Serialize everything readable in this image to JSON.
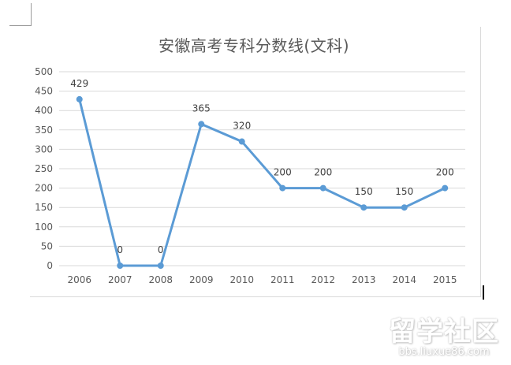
{
  "chart_data": {
    "type": "line",
    "title": "安徽高考专科分数线(文科)",
    "xlabel": "",
    "ylabel": "",
    "categories": [
      "2006",
      "2007",
      "2008",
      "2009",
      "2010",
      "2011",
      "2012",
      "2013",
      "2014",
      "2015"
    ],
    "series": [
      {
        "name": "文科",
        "values": [
          429,
          0,
          0,
          365,
          320,
          200,
          200,
          150,
          150,
          200
        ],
        "color": "#5B9BD5"
      }
    ],
    "ylim": [
      0,
      500
    ],
    "yticks": [
      0,
      50,
      100,
      150,
      200,
      250,
      300,
      350,
      400,
      450,
      500
    ],
    "grid": true,
    "legend": "none",
    "data_labels": [
      "429",
      "0",
      "0",
      "365",
      "320",
      "200",
      "200",
      "150",
      "150",
      "200"
    ]
  },
  "watermark": {
    "main": "留学社区",
    "sub": "bbs.liuxue86.com"
  },
  "colors": {
    "line": "#5B9BD5",
    "grid": "#d9d9d9",
    "axis_text": "#595959",
    "title": "#595959"
  }
}
